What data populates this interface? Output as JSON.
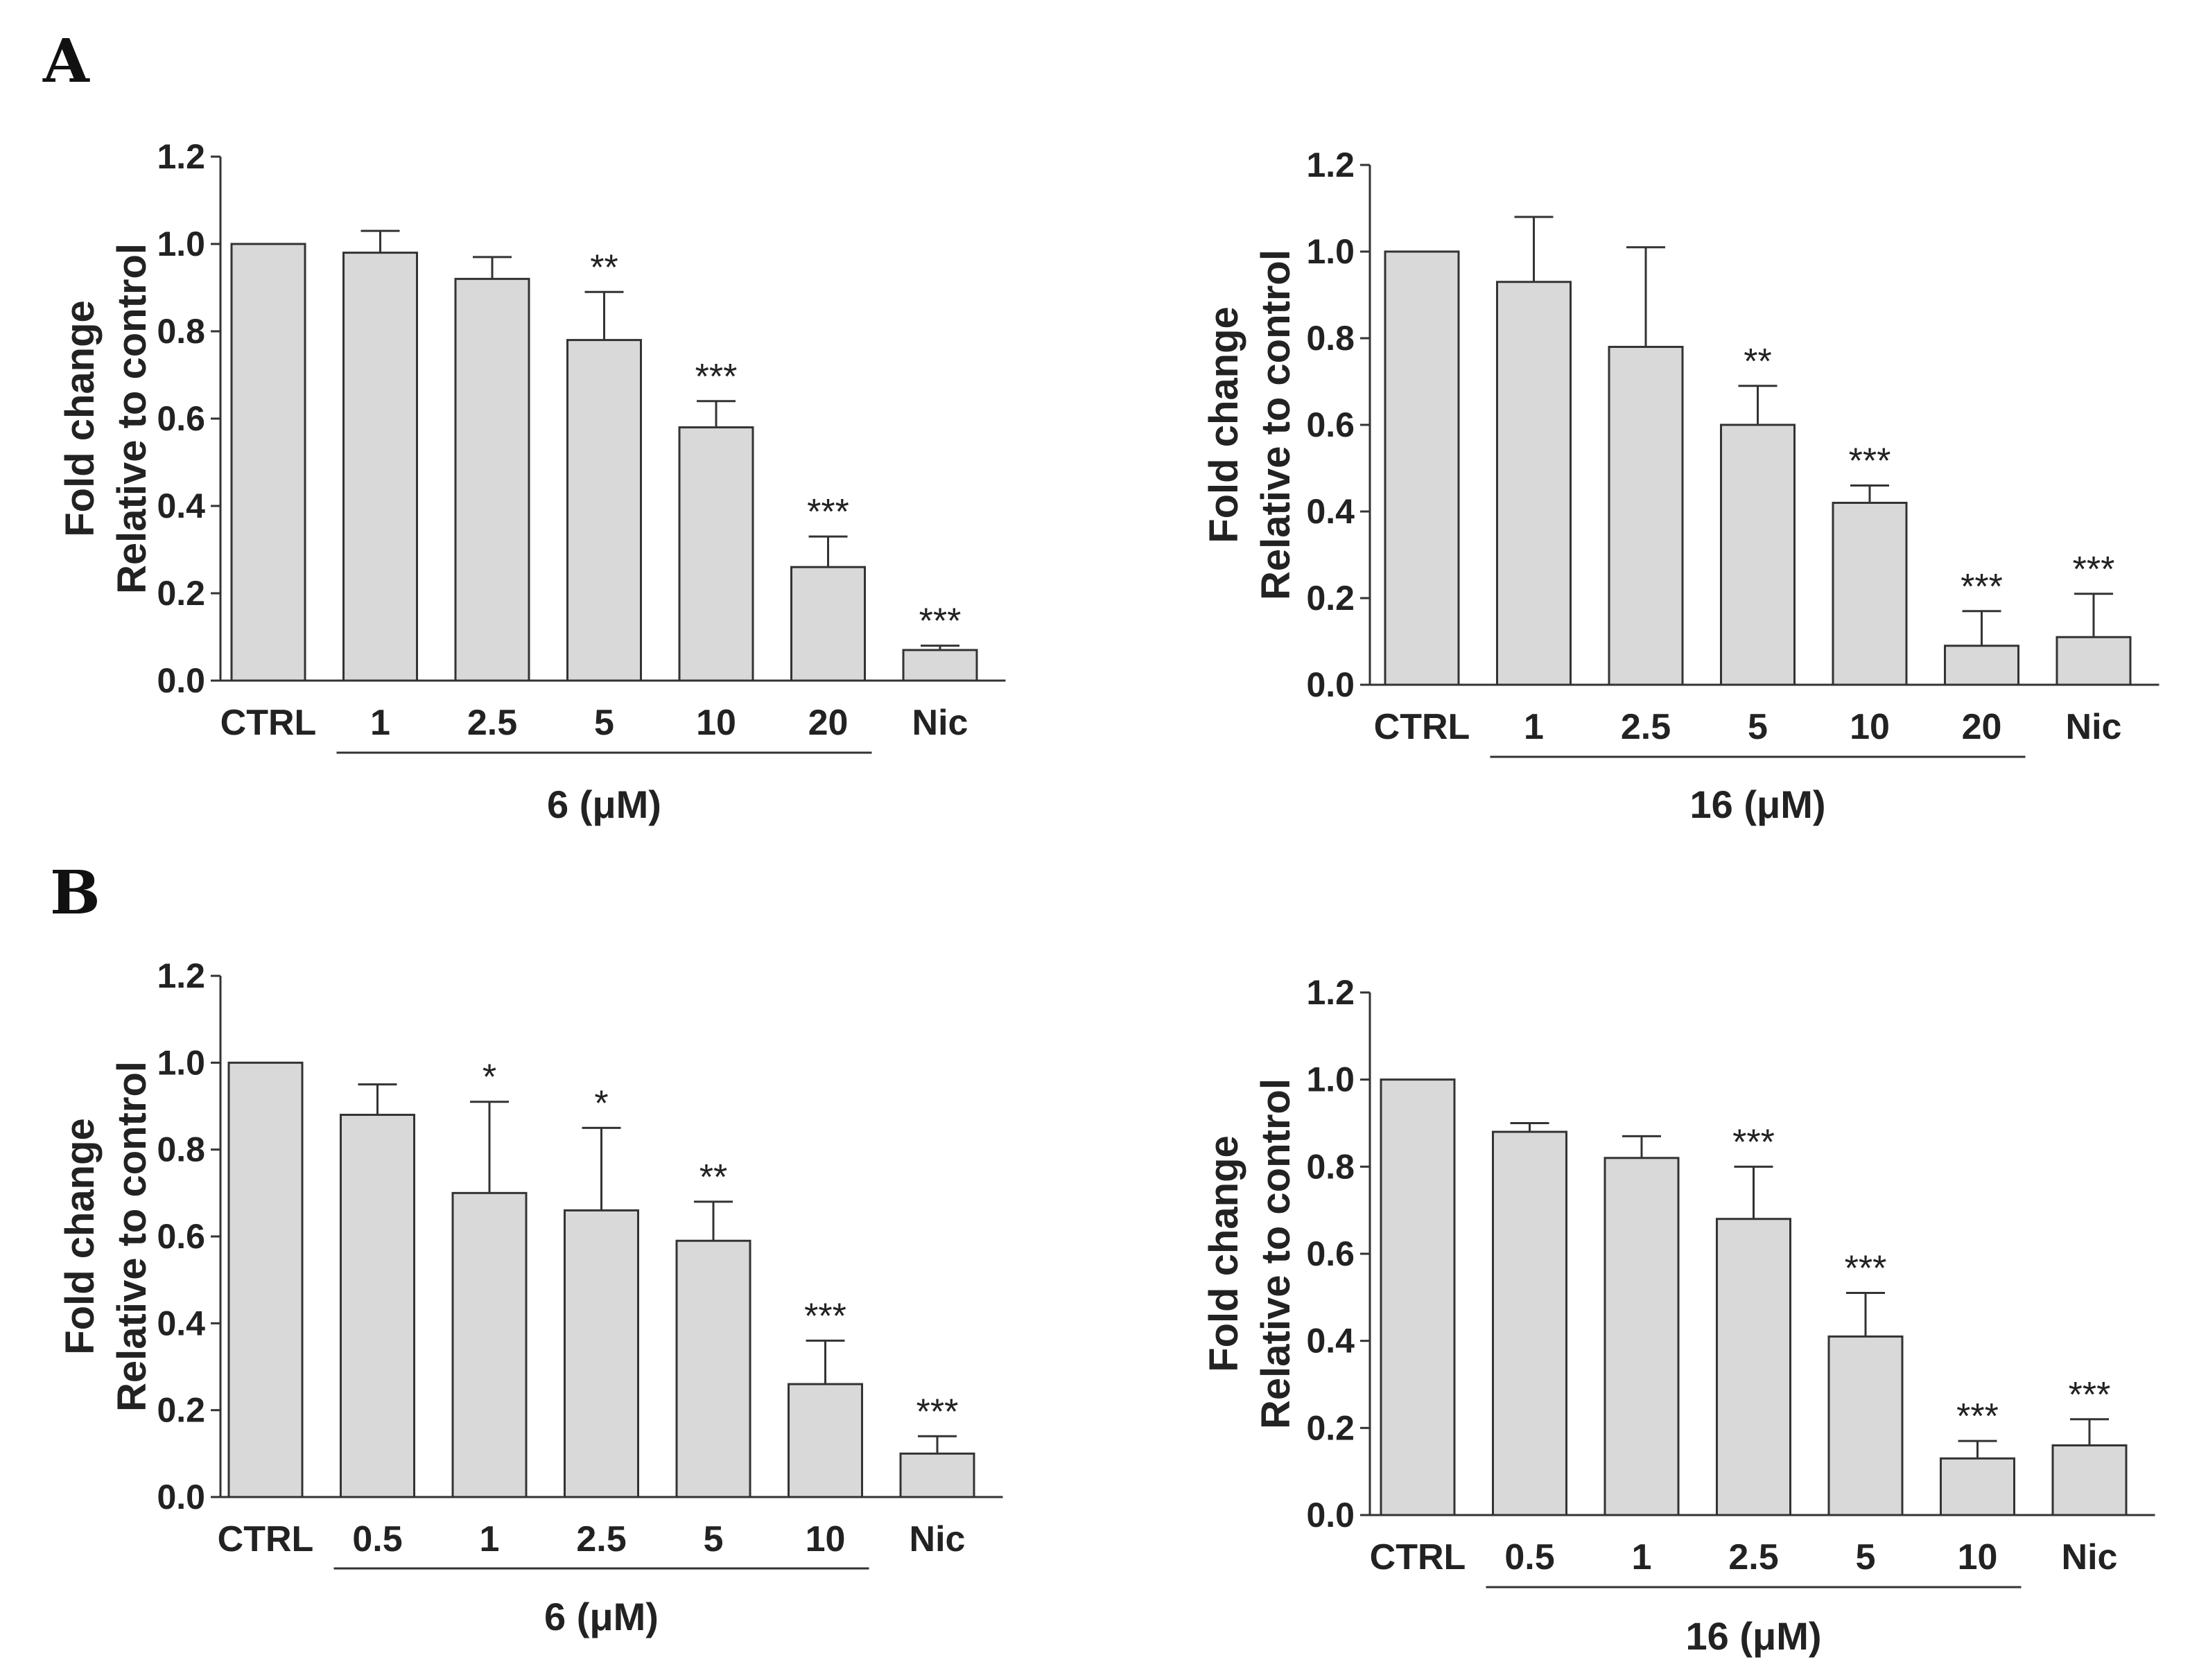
{
  "panels": [
    {
      "letter": "A"
    },
    {
      "letter": "B"
    }
  ],
  "chart_data": [
    {
      "type": "bar",
      "panel": "A",
      "ylabel_lines": [
        "Fold change",
        "Relative to control"
      ],
      "ylim": [
        0,
        1.2
      ],
      "yticks": [
        "0.0",
        "0.2",
        "0.4",
        "0.6",
        "0.8",
        "1.0",
        "1.2"
      ],
      "categories": [
        "CTRL",
        "1",
        "2.5",
        "5",
        "10",
        "20",
        "Nic"
      ],
      "values": [
        1.0,
        0.98,
        0.92,
        0.78,
        0.58,
        0.26,
        0.07
      ],
      "errors": [
        0.0,
        0.05,
        0.05,
        0.11,
        0.06,
        0.07,
        0.01
      ],
      "significance": [
        "",
        "",
        "",
        "**",
        "***",
        "***",
        "***"
      ],
      "group_label": "6 (μM)",
      "group_range": [
        1,
        5
      ],
      "bar_color": "#d9d9d9"
    },
    {
      "type": "bar",
      "panel": "A",
      "ylabel_lines": [
        "Fold change",
        "Relative to control"
      ],
      "ylim": [
        0,
        1.2
      ],
      "yticks": [
        "0.0",
        "0.2",
        "0.4",
        "0.6",
        "0.8",
        "1.0",
        "1.2"
      ],
      "categories": [
        "CTRL",
        "1",
        "2.5",
        "5",
        "10",
        "20",
        "Nic"
      ],
      "values": [
        1.0,
        0.93,
        0.78,
        0.6,
        0.42,
        0.09,
        0.11
      ],
      "errors": [
        0.0,
        0.15,
        0.23,
        0.09,
        0.04,
        0.08,
        0.1
      ],
      "significance": [
        "",
        "",
        "",
        "**",
        "***",
        "***",
        "***"
      ],
      "group_label": "16 (μM)",
      "group_range": [
        1,
        5
      ],
      "bar_color": "#d9d9d9"
    },
    {
      "type": "bar",
      "panel": "B",
      "ylabel_lines": [
        "Fold change",
        "Relative to control"
      ],
      "ylim": [
        0,
        1.2
      ],
      "yticks": [
        "0.0",
        "0.2",
        "0.4",
        "0.6",
        "0.8",
        "1.0",
        "1.2"
      ],
      "categories": [
        "CTRL",
        "0.5",
        "1",
        "2.5",
        "5",
        "10",
        "Nic"
      ],
      "values": [
        1.0,
        0.88,
        0.7,
        0.66,
        0.59,
        0.26,
        0.1
      ],
      "errors": [
        0.0,
        0.07,
        0.21,
        0.19,
        0.09,
        0.1,
        0.04
      ],
      "significance": [
        "",
        "",
        "*",
        "*",
        "**",
        "***",
        "***"
      ],
      "group_label": "6 (μM)",
      "group_range": [
        1,
        5
      ],
      "bar_color": "#d9d9d9"
    },
    {
      "type": "bar",
      "panel": "B",
      "ylabel_lines": [
        "Fold change",
        "Relative to control"
      ],
      "ylim": [
        0,
        1.2
      ],
      "yticks": [
        "0.0",
        "0.2",
        "0.4",
        "0.6",
        "0.8",
        "1.0",
        "1.2"
      ],
      "categories": [
        "CTRL",
        "0.5",
        "1",
        "2.5",
        "5",
        "10",
        "Nic"
      ],
      "values": [
        1.0,
        0.88,
        0.82,
        0.68,
        0.41,
        0.13,
        0.16
      ],
      "errors": [
        0.0,
        0.02,
        0.05,
        0.12,
        0.1,
        0.04,
        0.06
      ],
      "significance": [
        "",
        "",
        "",
        "***",
        "***",
        "***",
        "***"
      ],
      "group_label": "16 (μM)",
      "group_range": [
        1,
        5
      ],
      "bar_color": "#d9d9d9"
    }
  ]
}
